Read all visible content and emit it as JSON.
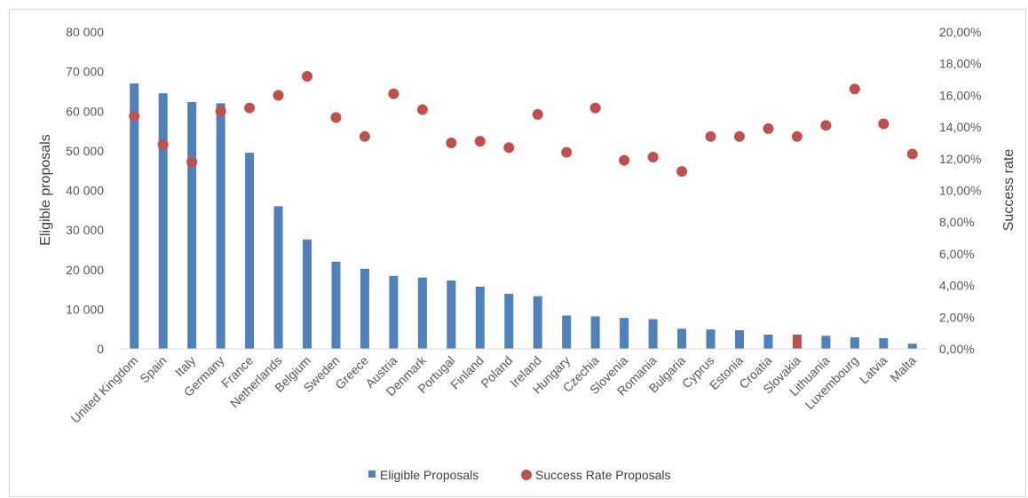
{
  "chart_data": {
    "type": "bar",
    "categories": [
      "United Kingdom",
      "Spain",
      "Italy",
      "Germany",
      "France",
      "Netherlands",
      "Belgium",
      "Sweden",
      "Greece",
      "Austria",
      "Denmark",
      "Portugal",
      "Finland",
      "Poland",
      "Ireland",
      "Hungary",
      "Czechia",
      "Slovenia",
      "Romania",
      "Bulgaria",
      "Cyprus",
      "Estonia",
      "Croatia",
      "Slovakia",
      "Lithuania",
      "Luxembourg",
      "Latvia",
      "Malta"
    ],
    "series": [
      {
        "name": "Eligible Proposals",
        "kind": "bar",
        "axis": "left",
        "color": "#4f81bd",
        "highlight_color": "#c0504d",
        "highlight_category": "Slovakia",
        "values": [
          67000,
          64500,
          62300,
          62000,
          49500,
          36000,
          27600,
          22000,
          20200,
          18400,
          18000,
          17300,
          15700,
          13900,
          13300,
          8400,
          8200,
          7800,
          7500,
          5100,
          4900,
          4700,
          3600,
          3600,
          3300,
          2900,
          2700,
          1300
        ]
      },
      {
        "name": "Success Rate Proposals",
        "kind": "scatter",
        "axis": "right",
        "color": "#c0504d",
        "values": [
          0.147,
          0.129,
          0.118,
          0.15,
          0.152,
          0.16,
          0.172,
          0.146,
          0.134,
          0.161,
          0.151,
          0.13,
          0.131,
          0.127,
          0.148,
          0.124,
          0.152,
          0.119,
          0.121,
          0.112,
          0.134,
          0.134,
          0.139,
          0.134,
          0.141,
          0.164,
          0.142,
          0.123
        ]
      }
    ],
    "ylabel": "Eligible proposals",
    "y2label": "Success rate",
    "ylim": [
      0,
      80000
    ],
    "y2lim": [
      0,
      0.2
    ],
    "y_ticks": [
      "0",
      "10 000",
      "20 000",
      "30 000",
      "40 000",
      "50 000",
      "60 000",
      "70 000",
      "80 000"
    ],
    "y2_ticks": [
      "0,00%",
      "2,00%",
      "4,00%",
      "6,00%",
      "8,00%",
      "10,00%",
      "12,00%",
      "14,00%",
      "16,00%",
      "18,00%",
      "20,00%"
    ],
    "grid": false,
    "legend_position": "bottom"
  }
}
